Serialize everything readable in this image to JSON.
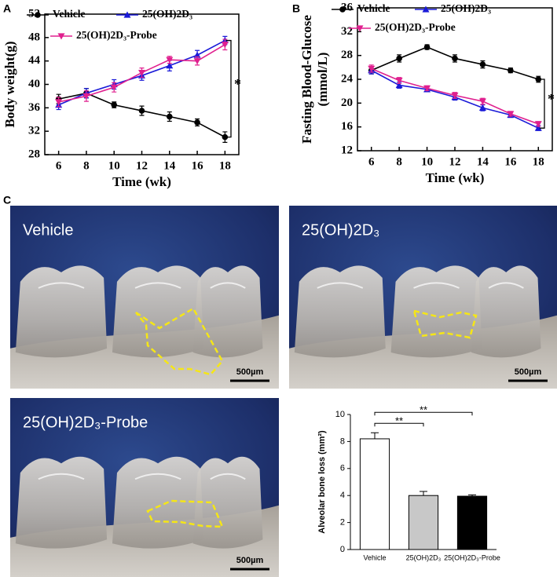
{
  "panels": [
    "A",
    "B",
    "C"
  ],
  "chart_data": [
    {
      "type": "line",
      "ylabel": "Body  weight(g)",
      "xlabel": "Time (wk)",
      "x": [
        6,
        8,
        10,
        12,
        14,
        16,
        18
      ],
      "xlim": [
        5,
        19
      ],
      "xticks": [
        6,
        8,
        10,
        12,
        14,
        16,
        18
      ],
      "ylim": [
        28,
        52
      ],
      "yticks": [
        28,
        32,
        36,
        40,
        44,
        48,
        52
      ],
      "legend": "top",
      "annotation": "*",
      "series": [
        {
          "name": "Vehicle",
          "color": "#000000",
          "marker": "circle",
          "values": [
            37.5,
            38.5,
            36.5,
            35.5,
            34.5,
            33.5,
            31
          ],
          "errors": [
            0.8,
            0.8,
            0.5,
            0.8,
            0.8,
            0.6,
            0.9
          ]
        },
        {
          "name": "25(OH)2D₃",
          "color": "#1a1ad8",
          "marker": "triangle-up",
          "values": [
            36.5,
            38.5,
            40,
            41.5,
            43.2,
            45,
            47.5
          ],
          "errors": [
            0.8,
            0.8,
            0.8,
            0.8,
            0.9,
            0.8,
            0.7
          ]
        },
        {
          "name": "25(OH)2D₃-Probe",
          "color": "#e0208f",
          "marker": "triangle-down",
          "values": [
            37,
            38,
            39.5,
            42,
            44.2,
            44,
            46.8
          ],
          "errors": [
            0.8,
            0.9,
            0.8,
            0.8,
            0.6,
            0.7,
            0.9
          ]
        }
      ]
    },
    {
      "type": "line",
      "ylabel": [
        "Fasting Blood-Glucose",
        "(mmol/L)"
      ],
      "xlabel": "Time (wk)",
      "x": [
        6,
        8,
        10,
        12,
        14,
        16,
        18
      ],
      "xlim": [
        5,
        19
      ],
      "xticks": [
        6,
        8,
        10,
        12,
        14,
        16,
        18
      ],
      "ylim": [
        12,
        36
      ],
      "yticks": [
        12,
        16,
        20,
        24,
        28,
        32,
        36
      ],
      "legend": "top",
      "annotation": "*",
      "series": [
        {
          "name": "Vehicle",
          "color": "#000000",
          "marker": "circle",
          "values": [
            25.5,
            27.5,
            29.4,
            27.5,
            26.5,
            25.5,
            24
          ],
          "errors": [
            0.6,
            0.6,
            0.4,
            0.6,
            0.6,
            0.4,
            0.5
          ]
        },
        {
          "name": "25(OH)2D₃",
          "color": "#1a1ad8",
          "marker": "triangle-up",
          "values": [
            25.5,
            23,
            22.3,
            21,
            19.2,
            18,
            15.8
          ],
          "errors": [
            0.6,
            0.5,
            0.4,
            0.5,
            0.5,
            0.4,
            0.4
          ]
        },
        {
          "name": "25(OH)2D₃-Probe",
          "color": "#e0208f",
          "marker": "triangle-down",
          "values": [
            25.8,
            23.8,
            22.5,
            21.3,
            20.3,
            18.2,
            16.5
          ],
          "errors": [
            0.6,
            0.5,
            0.4,
            0.5,
            0.5,
            0.4,
            0.4
          ]
        }
      ]
    },
    {
      "type": "bar",
      "ylabel": "Alveolar bone loss (mm²)",
      "categories": [
        "Vehicle",
        "25(OH)2D₃",
        "25(OH)2D₃-Probe"
      ],
      "values": [
        8.2,
        4.0,
        3.95
      ],
      "errors": [
        0.45,
        0.3,
        0.1
      ],
      "colors": [
        "#ffffff",
        "#c8c8c8",
        "#000000"
      ],
      "ylim": [
        0,
        10
      ],
      "yticks": [
        0,
        2,
        4,
        6,
        8,
        10
      ],
      "annotations": [
        "**",
        "**"
      ]
    }
  ],
  "photos": [
    {
      "label": "Vehicle",
      "scale_bar": "500µm"
    },
    {
      "label": "25(OH)2D₃",
      "scale_bar": "500µm"
    },
    {
      "label": "25(OH)2D₃-Probe",
      "scale_bar": "500µm"
    }
  ]
}
